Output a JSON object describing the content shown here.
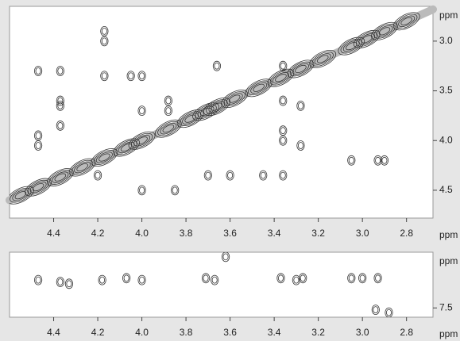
{
  "chart_data": [
    {
      "type": "contour",
      "color": "#333333",
      "xlabel": "ppm",
      "ylabel": "ppm",
      "xlim": [
        4.6,
        2.68
      ],
      "ylim": [
        2.65,
        4.78
      ],
      "xticks": [
        4.4,
        4.2,
        {
          "value": 4,
          "label": "4.0"
        },
        3.8,
        3.6,
        3.4,
        3.2,
        {
          "value": 3,
          "label": "3.0"
        },
        2.8
      ],
      "yticks": [
        {
          "value": 3,
          "label": "3.0"
        },
        3.5,
        {
          "value": 4,
          "label": "4.0"
        },
        4.5
      ],
      "x": [
        4.55,
        4.47,
        4.37,
        4.27,
        4.17,
        4.07,
        4.0,
        3.88,
        3.78,
        3.71,
        3.66,
        3.58,
        3.47,
        3.37,
        3.28,
        3.18,
        3.05,
        2.98,
        2.9,
        2.8,
        4.17,
        4.17,
        4.47,
        4.37,
        4.37,
        4.37,
        4.37,
        4.47,
        4.47,
        4.17,
        4.05,
        4.0,
        4.0,
        3.88,
        3.88,
        3.66,
        3.36,
        3.36,
        3.36,
        3.36,
        3.28,
        3.28,
        3.05,
        2.93,
        2.9,
        3.7,
        3.6,
        3.45,
        3.36,
        4.2,
        4.0,
        3.85
      ],
      "values": [
        4.55,
        4.47,
        4.37,
        4.27,
        4.17,
        4.07,
        4.0,
        3.88,
        3.78,
        3.71,
        3.66,
        3.58,
        3.47,
        3.37,
        3.28,
        3.18,
        3.05,
        2.98,
        2.9,
        2.8,
        2.9,
        3.0,
        3.3,
        3.3,
        3.6,
        3.65,
        3.85,
        3.95,
        4.05,
        3.35,
        3.35,
        3.35,
        3.7,
        3.6,
        3.7,
        3.25,
        3.25,
        3.6,
        3.9,
        4.0,
        3.65,
        4.05,
        4.2,
        4.2,
        4.2,
        4.35,
        4.35,
        4.35,
        4.35,
        4.35,
        4.5,
        4.5
      ]
    },
    {
      "type": "contour",
      "color": "#333333",
      "xlabel": "ppm",
      "ylabel": "ppm",
      "xlim": [
        4.6,
        2.68
      ],
      "ylim": [
        6.9,
        7.6
      ],
      "xticks": [
        4.4,
        4.2,
        {
          "value": 4,
          "label": "4.0"
        },
        3.8,
        3.6,
        3.4,
        3.2,
        {
          "value": 3,
          "label": "3.0"
        },
        2.8
      ],
      "yticks": [
        7.5
      ],
      "x": [
        4.47,
        4.37,
        4.33,
        4.18,
        4.07,
        4.0,
        3.71,
        3.67,
        3.37,
        3.3,
        3.27,
        3.05,
        3.0,
        2.93,
        2.88,
        2.94,
        3.62
      ],
      "values": [
        7.2,
        7.22,
        7.24,
        7.2,
        7.18,
        7.2,
        7.18,
        7.2,
        7.18,
        7.2,
        7.18,
        7.18,
        7.18,
        7.18,
        7.55,
        7.52,
        6.95
      ]
    }
  ]
}
